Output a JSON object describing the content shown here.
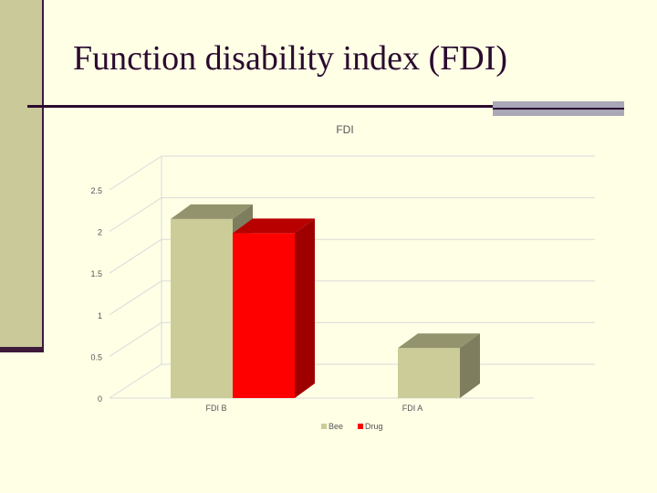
{
  "slide": {
    "title": "Function disability index (FDI)"
  },
  "chart_data": {
    "type": "bar",
    "title": "FDI",
    "categories": [
      "FDI B",
      "FDI A"
    ],
    "series": [
      {
        "name": "Bee",
        "values": [
          2.15,
          0.6
        ],
        "color": "#CCCC99"
      },
      {
        "name": "Drug",
        "values": [
          1.98,
          null
        ],
        "color": "#FF0000"
      }
    ],
    "ylim": [
      0,
      2.5
    ],
    "yticks": [
      "0",
      "0.5",
      "1",
      "1.5",
      "2",
      "2.5"
    ],
    "grid": true,
    "legend_position": "bottom"
  }
}
